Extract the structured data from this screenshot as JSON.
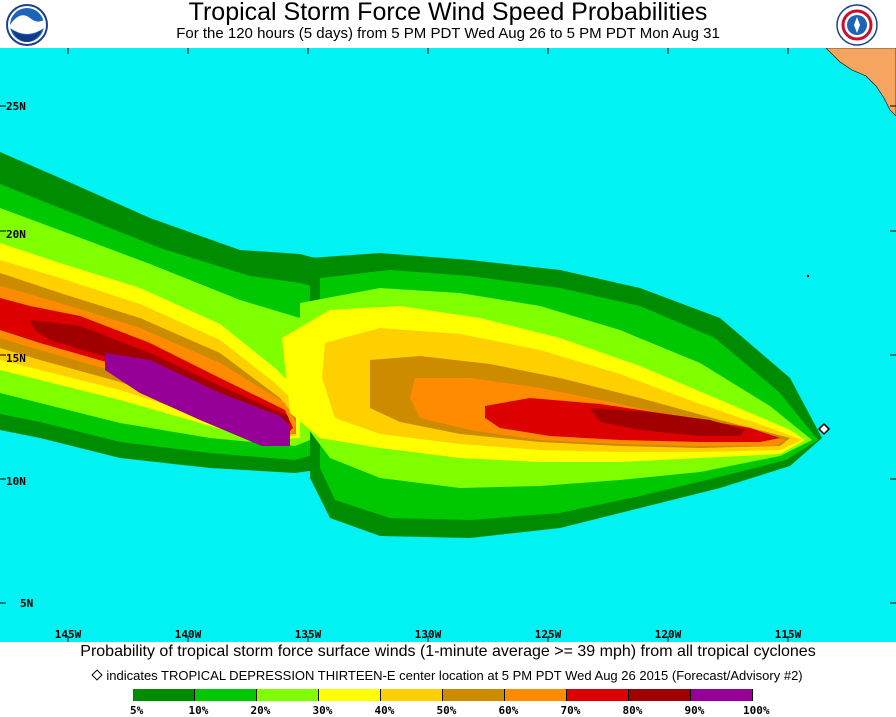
{
  "header": {
    "title": "Tropical Storm Force Wind Speed Probabilities",
    "subtitle": "For the 120 hours (5 days) from 5 PM PDT Wed Aug 26 to 5 PM PDT Mon Aug 31",
    "left_logo": "noaa-logo",
    "right_logo": "national-weather-service-logo"
  },
  "map": {
    "ocean_color": "#00f2f2",
    "land_color": "#f5a560",
    "lat_labels": [
      "25N",
      "20N",
      "15N",
      "10N",
      "5N"
    ],
    "lon_labels": [
      "145W",
      "140W",
      "135W",
      "130W",
      "125W",
      "120W",
      "115W"
    ],
    "storm_position": {
      "lat": 12.0,
      "lon": -113.5
    }
  },
  "caption": "Probability of tropical storm force surface winds (1-minute average >= 39 mph) from all tropical cyclones",
  "note": "indicates TROPICAL DEPRESSION THIRTEEN-E center location at 5 PM PDT Wed Aug 26 2015 (Forecast/Advisory #2)",
  "legend": {
    "colors": [
      "#008c00",
      "#00c800",
      "#80ff00",
      "#ffff00",
      "#ffd000",
      "#cd8c00",
      "#ff8c00",
      "#dc0000",
      "#a00000",
      "#960096"
    ],
    "labels": [
      "5%",
      "10%",
      "20%",
      "30%",
      "40%",
      "50%",
      "60%",
      "70%",
      "80%",
      "90%",
      "100%"
    ]
  }
}
